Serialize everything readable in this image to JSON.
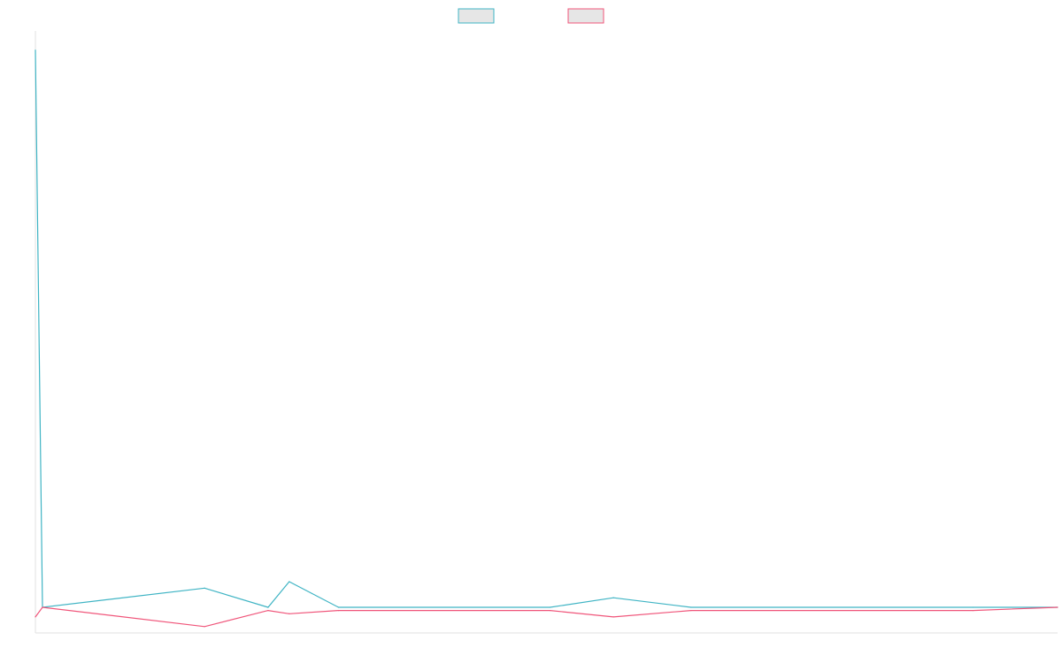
{
  "chart_data": {
    "type": "line",
    "title": "",
    "xlabel": "",
    "ylabel": "",
    "legend": {
      "placement": "top-center",
      "entries": [
        {
          "name": "",
          "color": "#3fb4c4"
        },
        {
          "name": "",
          "color": "#f0557a"
        }
      ]
    },
    "x": [
      0,
      1,
      24,
      33,
      36,
      43,
      73,
      82,
      93,
      133,
      145
    ],
    "xlim": [
      0,
      145
    ],
    "ylim": [
      -4,
      90
    ],
    "series": [
      {
        "name": "",
        "color": "#3fb4c4",
        "values": [
          87,
          0,
          3,
          0,
          4,
          0,
          0,
          1.5,
          0,
          0,
          0
        ]
      },
      {
        "name": "",
        "color": "#f0557a",
        "values": [
          -1.5,
          0,
          -3,
          -0.5,
          -1,
          -0.5,
          -0.5,
          -1.5,
          -0.5,
          -0.5,
          0
        ]
      }
    ],
    "grid": false,
    "axes_colour": "#e2e2e2"
  }
}
